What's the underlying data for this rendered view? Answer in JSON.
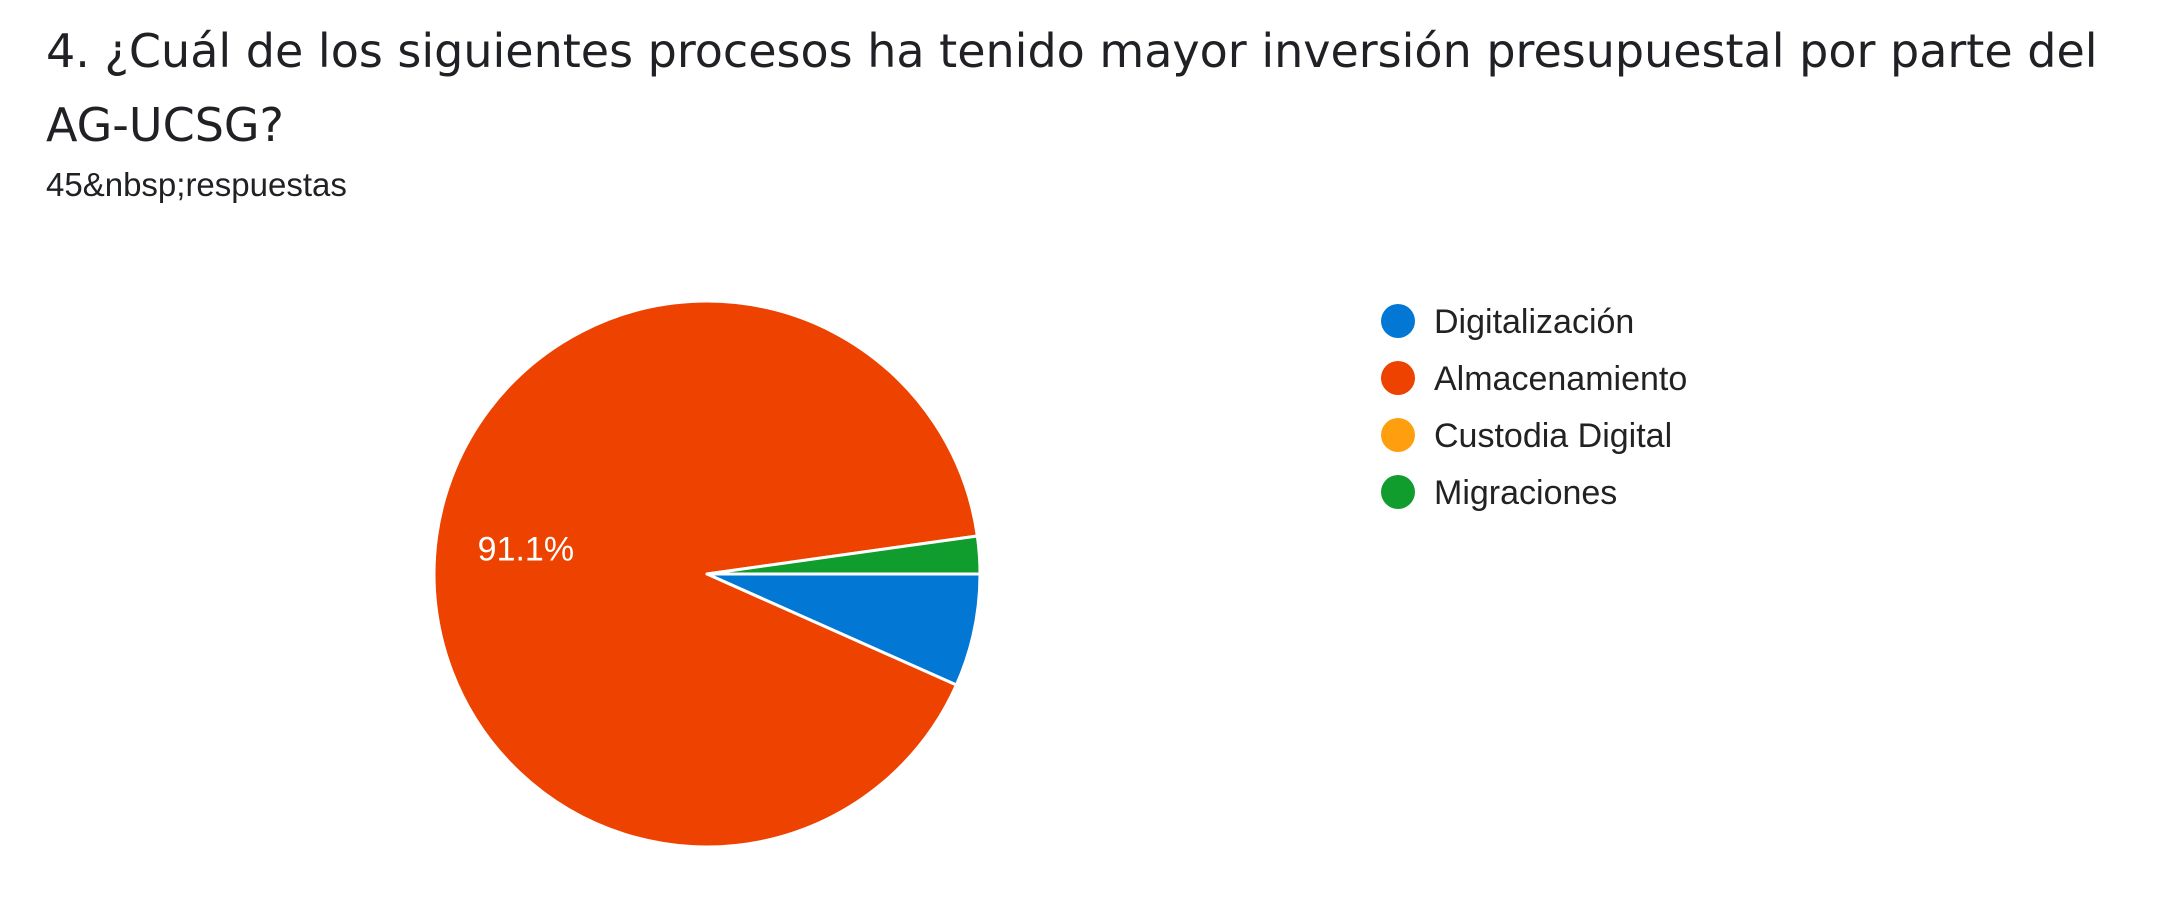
{
  "question": {
    "title": "4. ¿Cuál de los siguientes procesos ha tenido mayor inversión presupuestal por parte del AG-UCSG?",
    "responses": "45&nbsp;respuestas"
  },
  "chart_data": {
    "type": "pie",
    "categories": [
      "Digitalización",
      "Almacenamiento",
      "Custodia Digital",
      "Migraciones"
    ],
    "values": [
      3,
      41,
      0,
      1
    ],
    "percent_labels": [
      "",
      "91.1%",
      "",
      ""
    ],
    "colors": [
      "#0277d4",
      "#ed4200",
      "#ff9f10",
      "#109d2e"
    ],
    "legend_position": "right"
  }
}
